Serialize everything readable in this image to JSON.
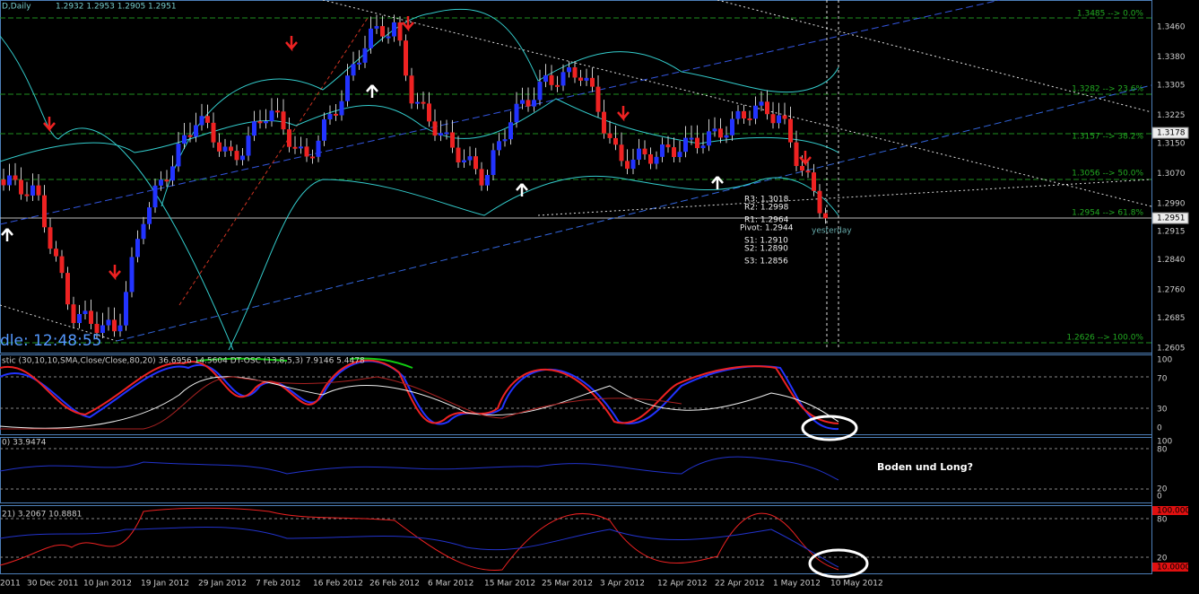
{
  "header": {
    "symbol": "D,Daily",
    "ohlc": "1.2932 1.2953 1.2905 1.2951"
  },
  "price_axis": {
    "ticks": [
      "1.3460",
      "1.3380",
      "1.3305",
      "1.3225",
      "1.3150",
      "1.3070",
      "1.2990",
      "1.2915",
      "1.2840",
      "1.2760",
      "1.2685",
      "1.2605"
    ],
    "markers": [
      "1.3178",
      "1.2951"
    ]
  },
  "fibonacci": [
    "1.3485 --> 0.0%",
    "1.3282 --> 23.6%",
    "1.3157 --> 38.2%",
    "1.3056 --> 50.0%",
    "1.2954 --> 61.8%",
    "1.2626 --> 100.0%"
  ],
  "pivots": [
    "R3: 1.3018",
    "R2: 1.2998",
    "R1: 1.2964",
    "Pivot: 1.2944",
    "S1: 1.2910",
    "S2: 1.2890",
    "S3: 1.2856"
  ],
  "yesterday": "yesterday",
  "timer": "dle: 12:48:55",
  "indicator1": {
    "label": "stic (30,10,10,SMA,Close/Close,80,20) 36.6956 14.5604 DT-OSC (13,8,5,3) 7.9146 5.4478",
    "ticks": [
      "100",
      "70",
      "30",
      "0"
    ]
  },
  "indicator2": {
    "label": "0) 33.9474",
    "ticks": [
      "100",
      "80",
      "20",
      "0"
    ]
  },
  "indicator3": {
    "label": "21) 3.2067 10.8881",
    "ticks": [
      "100.0000",
      "80",
      "20",
      "10.0000"
    ]
  },
  "annotation": "Boden und Long?",
  "dates": [
    "2011",
    "30 Dec 2011",
    "10 Jan 2012",
    "19 Jan 2012",
    "29 Jan 2012",
    "7 Feb 2012",
    "16 Feb 2012",
    "26 Feb 2012",
    "6 Mar 2012",
    "15 Mar 2012",
    "25 Mar 2012",
    "3 Apr 2012",
    "12 Apr 2012",
    "22 Apr 2012",
    "1 May 2012",
    "10 May 2012"
  ]
}
